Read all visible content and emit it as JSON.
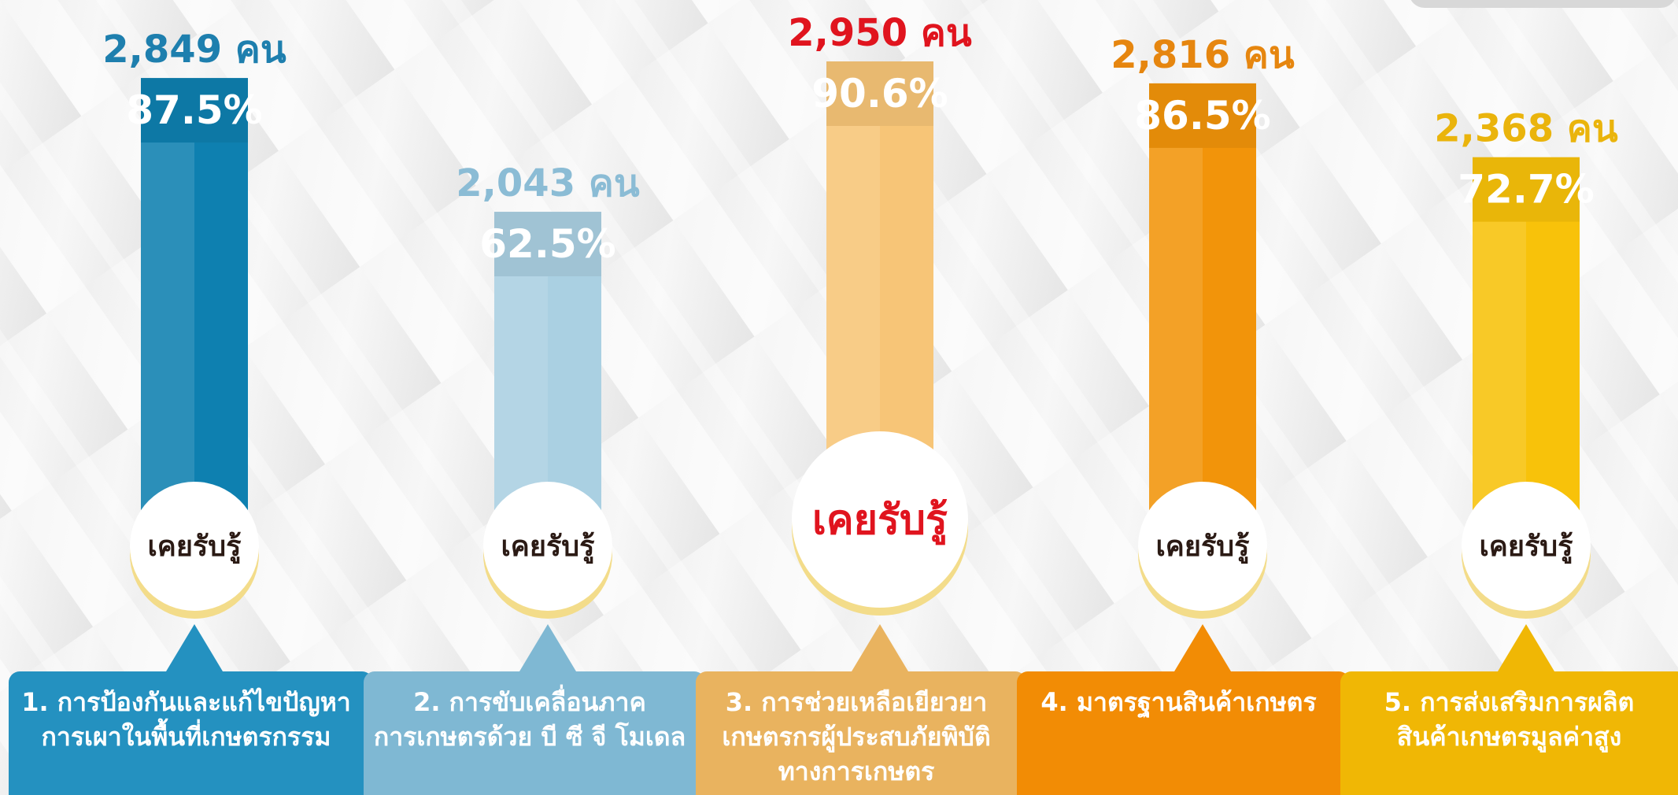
{
  "chart_data": {
    "type": "bar",
    "categories": [
      [
        "1. การป้องกันและแก้ไขปัญหา",
        "การเผาในพื้นที่เกษตรกรรม"
      ],
      [
        "2. การขับเคลื่อนภาค",
        "การเกษตรด้วย บี ซี จี โมเดล"
      ],
      [
        "3. การช่วยเหลือเยียวยา",
        "เกษตรกรผู้ประสบภัยพิบัติ",
        "ทางการเกษตร"
      ],
      [
        "4. มาตรฐานสินค้าเกษตร"
      ],
      [
        "5. การส่งเสริมการผลิต",
        "สินค้าเกษตรมูลค่าสูง"
      ]
    ],
    "values": [
      87.5,
      62.5,
      90.6,
      86.5,
      72.7
    ],
    "value_labels": [
      "87.5%",
      "62.5%",
      "90.6%",
      "86.5%",
      "72.7%"
    ],
    "counts": [
      2849,
      2043,
      2950,
      2816,
      2368
    ],
    "count_labels": [
      "2,849 คน",
      "2,043 คน",
      "2,950 คน",
      "2,816 คน",
      "2,368 คน"
    ],
    "circle_labels": [
      "เคยรับรู้",
      "เคยรับรู้",
      "เคยรับรู้",
      "เคยรับรู้",
      "เคยรับรู้"
    ],
    "colors": [
      "#0e80b0",
      "#aad0e2",
      "#f7c577",
      "#f2940a",
      "#f8c20a"
    ],
    "label_colors": [
      "#1e7fae",
      "#8bbcd5",
      "#e0141e",
      "#e6860f",
      "#eab40c"
    ],
    "box_colors": [
      "#2491c0",
      "#7fb8d3",
      "#e9b35f",
      "#f28c05",
      "#f0b705"
    ]
  }
}
